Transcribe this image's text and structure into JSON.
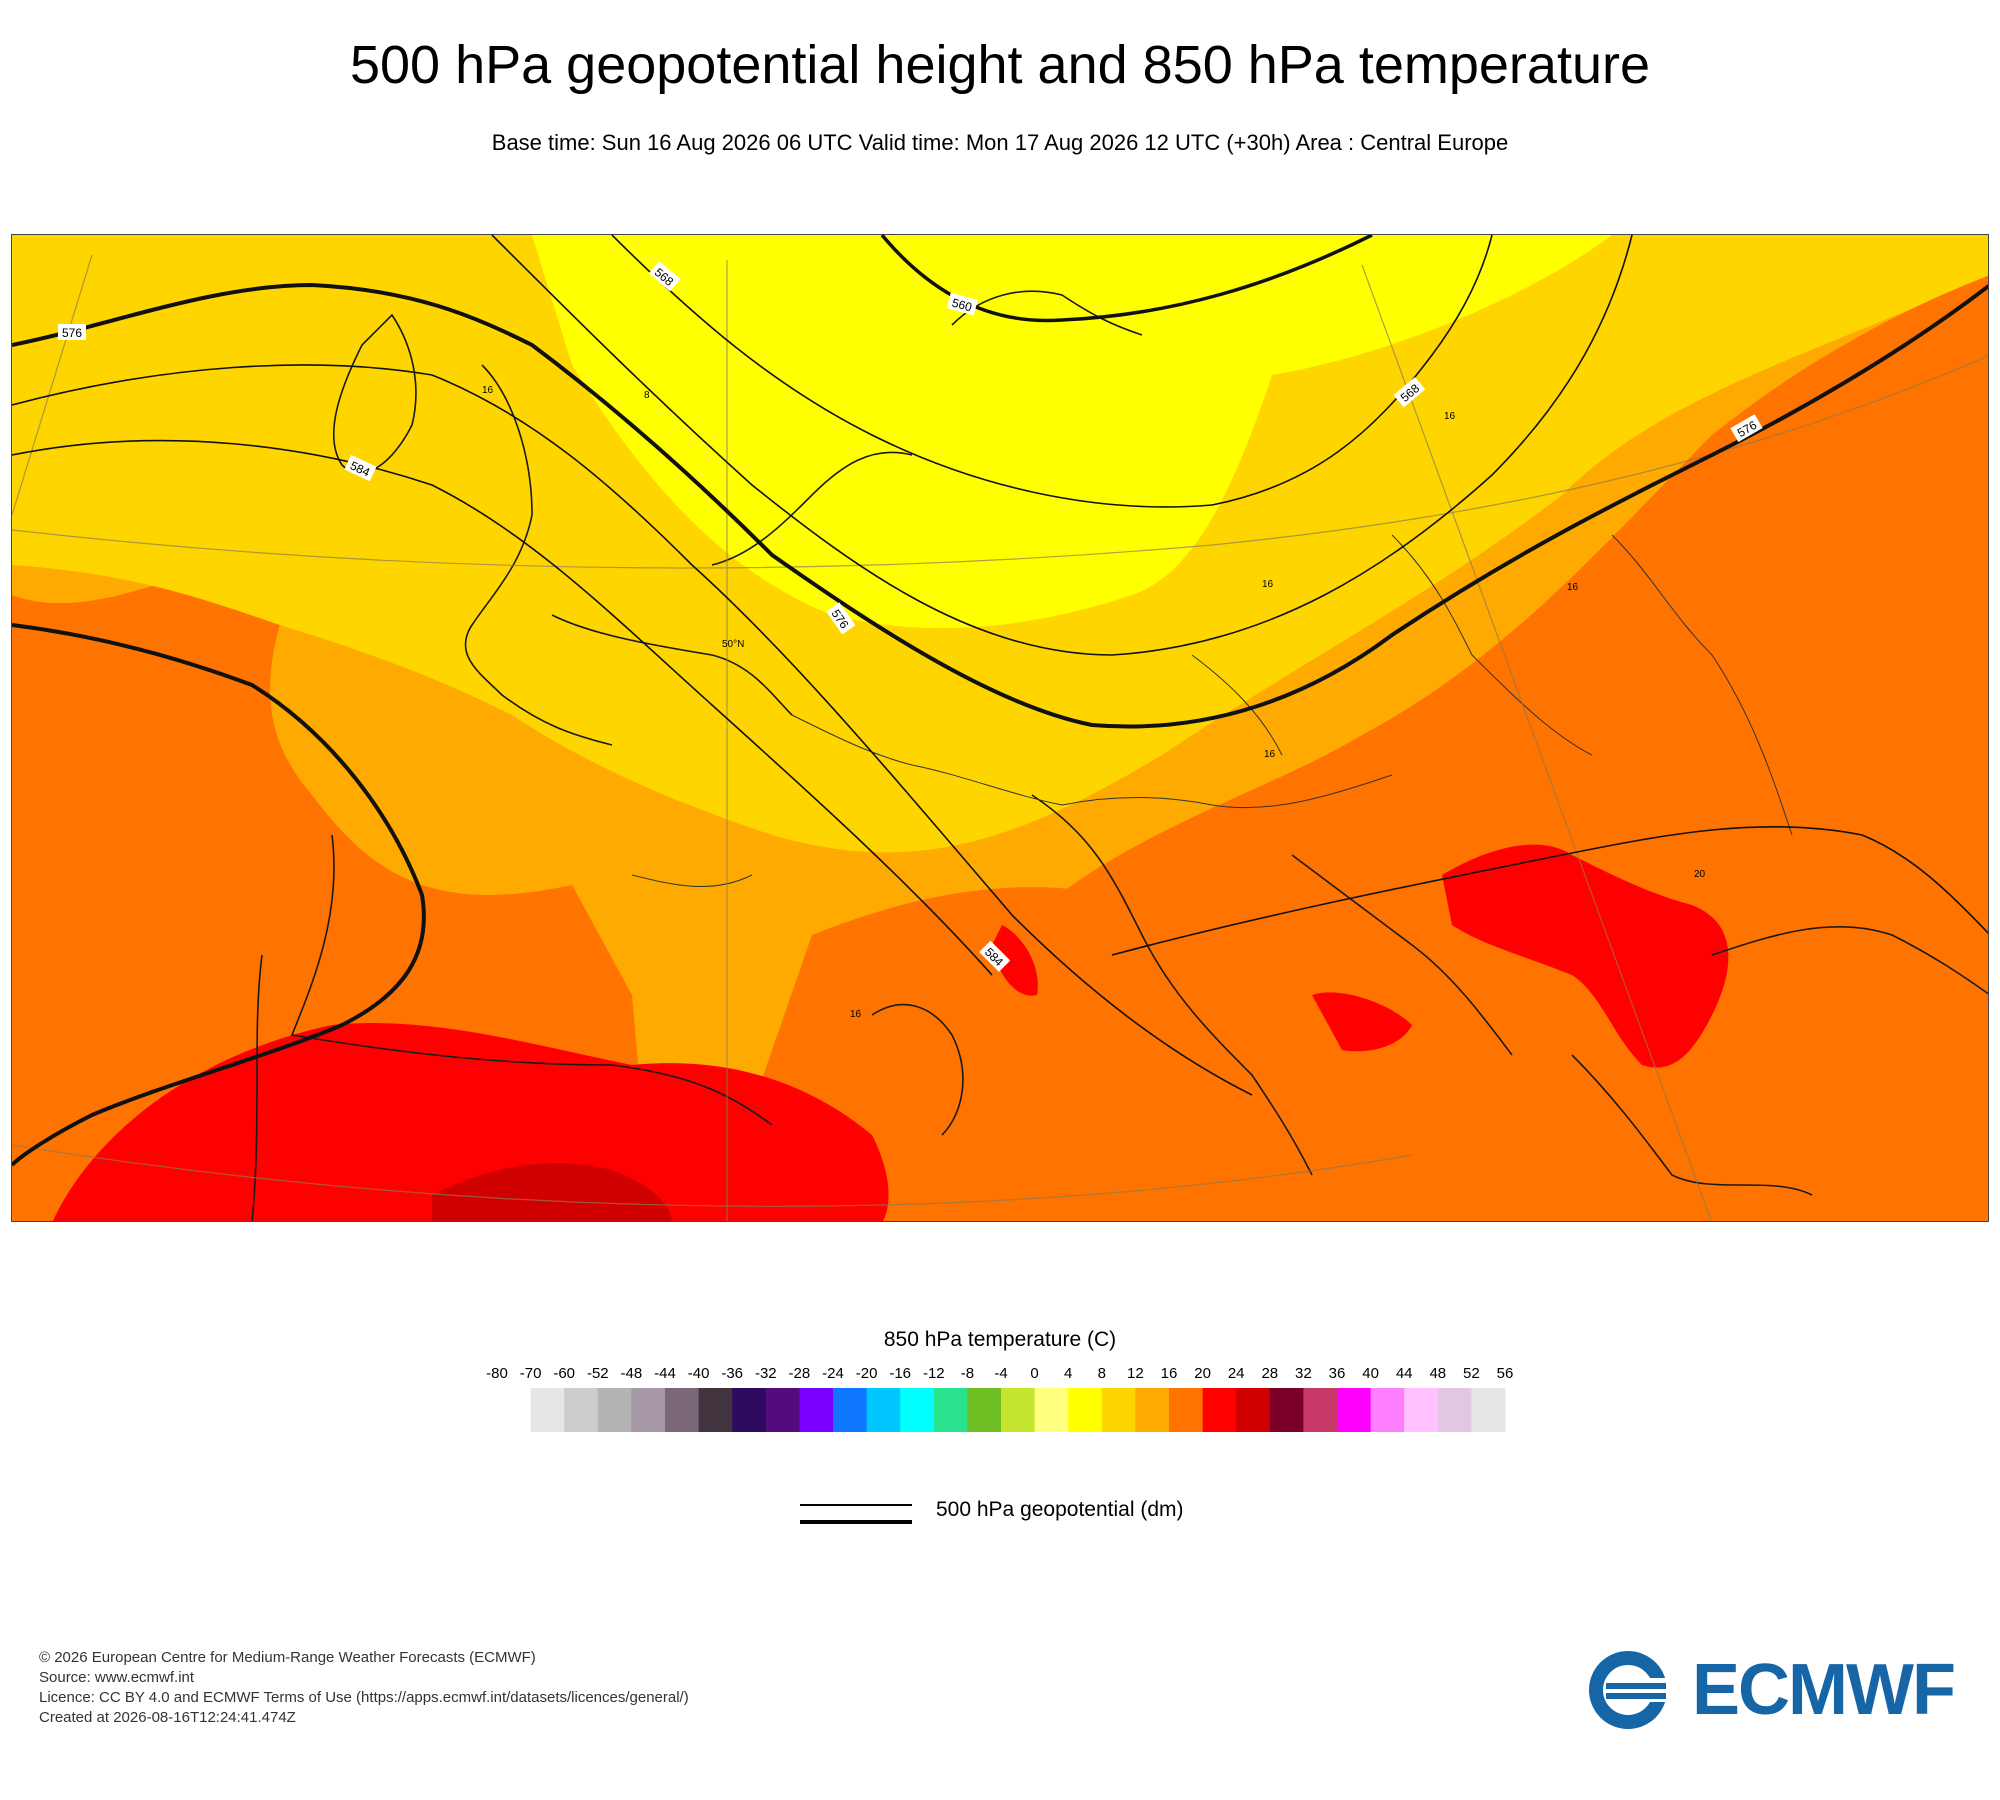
{
  "title": "500 hPa geopotential height and 850 hPa temperature",
  "subtitle": "Base time: Sun 16 Aug 2026 06 UTC Valid time: Mon 17 Aug 2026 12 UTC (+30h) Area : Central Europe",
  "map": {
    "contour_labels": [
      "576",
      "584",
      "568",
      "560",
      "576",
      "568",
      "576",
      "584",
      "576"
    ],
    "temperature_labels": [
      "16",
      "8",
      "16",
      "16",
      "16",
      "16",
      "20",
      "16"
    ],
    "latitude_label": "50°N"
  },
  "legend": {
    "temperature_title": "850 hPa temperature (C)",
    "ticks": [
      "-80",
      "-70",
      "-60",
      "-52",
      "-48",
      "-44",
      "-40",
      "-36",
      "-32",
      "-28",
      "-24",
      "-20",
      "-16",
      "-12",
      "-8",
      "-4",
      "0",
      "4",
      "8",
      "12",
      "16",
      "20",
      "24",
      "28",
      "32",
      "36",
      "40",
      "44",
      "48",
      "52",
      "56"
    ],
    "colors": [
      "#e6e6e6",
      "#cccccc",
      "#b3b3b3",
      "#a798a8",
      "#7a6777",
      "#42343f",
      "#2e0b5e",
      "#520c7d",
      "#7a00ff",
      "#0f76ff",
      "#00c6ff",
      "#00ffff",
      "#28e28e",
      "#6dbf24",
      "#c4e62e",
      "#ffff80",
      "#ffff00",
      "#ffd500",
      "#ffaa00",
      "#ff7300",
      "#ff0000",
      "#d10000",
      "#7a0027",
      "#c73a67",
      "#ff00ff",
      "#ff80ff",
      "#ffc1ff",
      "#e2c6e2",
      "#e6e6e6"
    ],
    "geopotential_label": "500 hPa geopotential (dm)"
  },
  "footer": {
    "line1": "© 2026 European Centre for Medium-Range Weather Forecasts (ECMWF)",
    "line2": "Source: www.ecmwf.int",
    "line3": "Licence: CC BY 4.0 and ECMWF Terms of Use (https://apps.ecmwf.int/datasets/licences/general/)",
    "line4": "Created at 2026-08-16T12:24:41.474Z"
  },
  "logo": {
    "text": "ECMWF",
    "color": "#1565a7"
  }
}
